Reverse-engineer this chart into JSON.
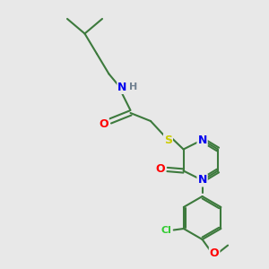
{
  "bg": "#e8e8e8",
  "bc": "#3d7a3d",
  "nc": "#0000ee",
  "oc": "#ff0000",
  "sc": "#cccc00",
  "clc": "#33cc33",
  "hc": "#708090",
  "lw": 1.5,
  "fs": 8.5,
  "xlim": [
    0,
    10
  ],
  "ylim": [
    0,
    10
  ],
  "figsize": [
    3.0,
    3.0
  ],
  "dpi": 100
}
